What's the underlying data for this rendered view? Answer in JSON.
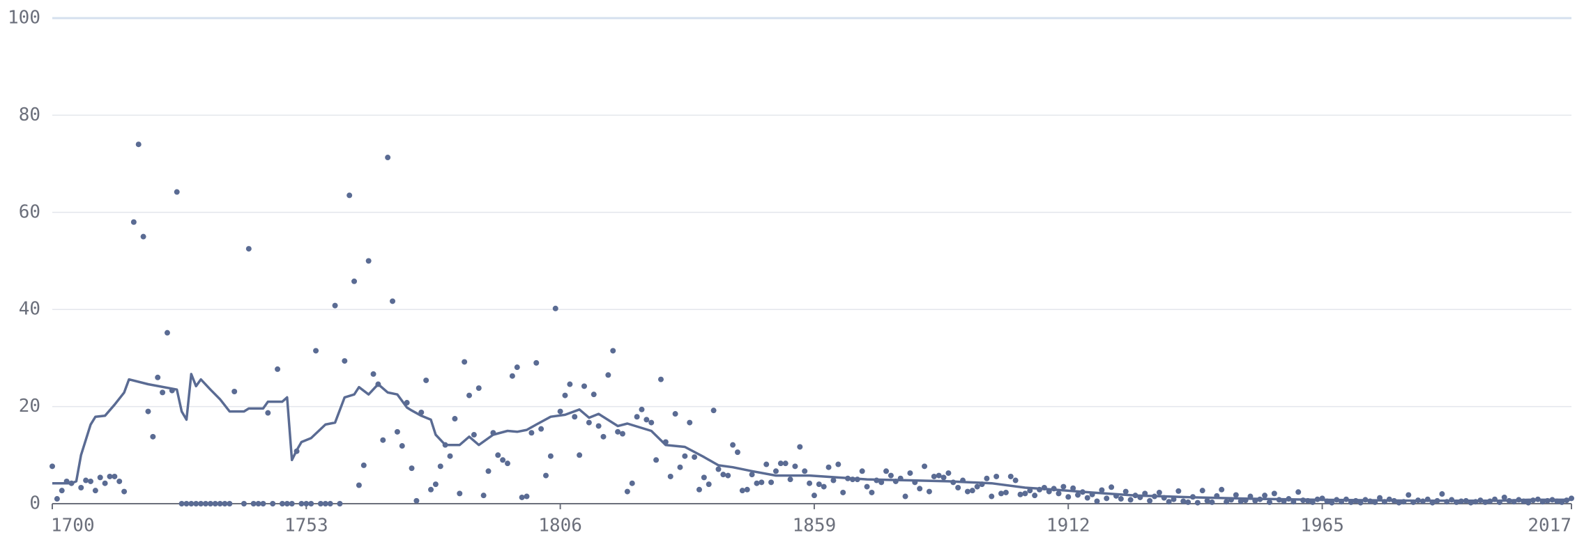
{
  "chart_data": {
    "type": "scatter",
    "x": [
      1700,
      1701,
      1702,
      1703,
      1704,
      1705,
      1706,
      1707,
      1708,
      1709,
      1710,
      1711,
      1712,
      1713,
      1714,
      1715,
      1716,
      1717,
      1718,
      1719,
      1720,
      1721,
      1722,
      1723,
      1724,
      1725,
      1726,
      1727,
      1728,
      1729,
      1730,
      1731,
      1732,
      1733,
      1734,
      1735,
      1736,
      1737,
      1738,
      1739,
      1740,
      1741,
      1742,
      1743,
      1744,
      1745,
      1746,
      1747,
      1748,
      1749,
      1750,
      1751,
      1752,
      1753,
      1754,
      1755,
      1756,
      1757,
      1758,
      1759,
      1760,
      1761,
      1762,
      1763,
      1764,
      1765,
      1766,
      1767,
      1768,
      1769,
      1770,
      1771,
      1772,
      1773,
      1774,
      1775,
      1776,
      1777,
      1778,
      1779,
      1780,
      1781,
      1782,
      1783,
      1784,
      1785,
      1786,
      1787,
      1788,
      1789,
      1790,
      1791,
      1792,
      1793,
      1794,
      1795,
      1796,
      1797,
      1798,
      1799,
      1800,
      1801,
      1802,
      1803,
      1804,
      1805,
      1806,
      1807,
      1808,
      1809,
      1810,
      1811,
      1812,
      1813,
      1814,
      1815,
      1816,
      1817,
      1818,
      1819,
      1820,
      1821,
      1822,
      1823,
      1824,
      1825,
      1826,
      1827,
      1828,
      1829,
      1830,
      1831,
      1832,
      1833,
      1834,
      1835,
      1836,
      1837,
      1838,
      1839,
      1840,
      1841,
      1842,
      1843,
      1844,
      1845,
      1846,
      1847,
      1848,
      1849,
      1850,
      1851,
      1852,
      1853,
      1854,
      1855,
      1856,
      1857,
      1858,
      1859,
      1860,
      1861,
      1862,
      1863,
      1864,
      1865,
      1866,
      1867,
      1868,
      1869,
      1870,
      1871,
      1872,
      1873,
      1874,
      1875,
      1876,
      1877,
      1878,
      1879,
      1880,
      1881,
      1882,
      1883,
      1884,
      1885,
      1886,
      1887,
      1888,
      1889,
      1890,
      1891,
      1892,
      1893,
      1894,
      1895,
      1896,
      1897,
      1898,
      1899,
      1900,
      1901,
      1902,
      1903,
      1904,
      1905,
      1906,
      1907,
      1908,
      1909,
      1910,
      1911,
      1912,
      1913,
      1914,
      1915,
      1916,
      1917,
      1918,
      1919,
      1920,
      1921,
      1922,
      1923,
      1924,
      1925,
      1926,
      1927,
      1928,
      1929,
      1930,
      1931,
      1932,
      1933,
      1934,
      1935,
      1936,
      1937,
      1938,
      1939,
      1940,
      1941,
      1942,
      1943,
      1944,
      1945,
      1946,
      1947,
      1948,
      1949,
      1950,
      1951,
      1952,
      1953,
      1954,
      1955,
      1956,
      1957,
      1958,
      1959,
      1960,
      1961,
      1962,
      1963,
      1964,
      1965,
      1966,
      1967,
      1968,
      1969,
      1970,
      1971,
      1972,
      1973,
      1974,
      1975,
      1976,
      1977,
      1978,
      1979,
      1980,
      1981,
      1982,
      1983,
      1984,
      1985,
      1986,
      1987,
      1988,
      1989,
      1990,
      1991,
      1992,
      1993,
      1994,
      1995,
      1996,
      1997,
      1998,
      1999,
      2000,
      2001,
      2002,
      2003,
      2004,
      2005,
      2006,
      2007,
      2008,
      2009,
      2010,
      2011,
      2012,
      2013,
      2014,
      2015,
      2016,
      2017
    ],
    "values": [
      7.7,
      1,
      2.7,
      4.6,
      4.2,
      null,
      3.3,
      4.8,
      4.6,
      2.7,
      5.4,
      4.2,
      5.6,
      5.6,
      4.6,
      2.5,
      null,
      58,
      74,
      55,
      19,
      13.8,
      26,
      22.9,
      35.2,
      23.3,
      64.2,
      0,
      0,
      0,
      0,
      0,
      0,
      0,
      0,
      0,
      0,
      0,
      23.1,
      null,
      0,
      52.5,
      0,
      0,
      0,
      18.7,
      0,
      27.7,
      0,
      0,
      0,
      10.8,
      0,
      0,
      0,
      31.5,
      0,
      0,
      0,
      40.8,
      0,
      29.4,
      63.5,
      45.8,
      3.8,
      7.9,
      50,
      26.7,
      24.6,
      13.1,
      71.3,
      41.7,
      14.8,
      11.9,
      20.8,
      7.3,
      0.6,
      18.8,
      25.4,
      2.9,
      4,
      7.7,
      12.1,
      9.8,
      17.5,
      2.1,
      29.2,
      22.3,
      14.2,
      23.8,
      1.7,
      6.7,
      14.6,
      10,
      9,
      8.3,
      26.3,
      28.1,
      1.3,
      1.5,
      14.6,
      29,
      15.4,
      5.8,
      9.8,
      40.2,
      19,
      22.3,
      24.6,
      17.9,
      10,
      24.2,
      16.7,
      22.5,
      16,
      13.8,
      26.5,
      31.5,
      14.8,
      14.4,
      2.5,
      4.2,
      17.9,
      19.4,
      17.3,
      16.7,
      9,
      25.6,
      12.7,
      5.6,
      18.5,
      7.5,
      9.8,
      16.7,
      9.6,
      2.9,
      5.4,
      4,
      19.2,
      7.1,
      6,
      5.8,
      12.1,
      10.6,
      2.7,
      2.9,
      6,
      4.2,
      4.4,
      8.1,
      4.4,
      6.7,
      8.3,
      8.3,
      5,
      7.7,
      11.7,
      6.7,
      4.2,
      1.7,
      4,
      3.5,
      7.5,
      4.8,
      8.1,
      2.3,
      5.2,
      5,
      5,
      6.7,
      3.5,
      2.3,
      4.8,
      4.4,
      6.7,
      5.8,
      4.6,
      5.2,
      1.5,
      6.3,
      4.4,
      3.1,
      7.7,
      2.5,
      5.6,
      5.8,
      5.4,
      6.3,
      4.4,
      3.3,
      4.8,
      2.5,
      2.7,
      3.5,
      4,
      5.2,
      1.5,
      5.6,
      2.1,
      2.3,
      5.6,
      4.8,
      1.9,
      2.1,
      2.7,
      1.7,
      2.9,
      3.3,
      2.5,
      3.1,
      2.1,
      3.5,
      1.4,
      3.2,
      1.8,
      2.4,
      1.2,
      1.9,
      0.5,
      2.8,
      1.1,
      3.4,
      1.6,
      1,
      2.5,
      0.8,
      1.7,
      1.3,
      2.1,
      0.6,
      1.5,
      2.3,
      1.2,
      0.4,
      0.9,
      2.6,
      0.5,
      0.3,
      1.4,
      0.2,
      2.7,
      0.6,
      0.3,
      1.6,
      2.9,
      0.4,
      0.8,
      1.8,
      0.5,
      0.7,
      1.5,
      0.6,
      0.9,
      1.7,
      0.3,
      2.1,
      0.8,
      0.5,
      1,
      0.4,
      2.4,
      0.7,
      0.6,
      0.3,
      0.9,
      1.1,
      0.5,
      0.2,
      0.8,
      0.4,
      0.9,
      0.3,
      0.6,
      0.2,
      0.8,
      0.5,
      0.3,
      1.2,
      0.4,
      0.9,
      0.6,
      0.2,
      0.4,
      1.8,
      0.3,
      0.7,
      0.5,
      0.9,
      0.2,
      0.6,
      2,
      0.4,
      0.8,
      0.3,
      0.5,
      0.6,
      0.2,
      0.4,
      0.7,
      0.3,
      0.5,
      0.9,
      0.3,
      1.3,
      0.6,
      0.4,
      0.8,
      0.5,
      0.2,
      0.7,
      0.9,
      0.4,
      0.6,
      0.8,
      0.5,
      0.3,
      0.7,
      1.1
    ],
    "color": "#5a6b93",
    "line": {
      "x": [
        1700,
        1704,
        1705,
        1706,
        1708,
        1709,
        1711,
        1713,
        1715,
        1716,
        1720,
        1726,
        1727,
        1728,
        1729,
        1730,
        1731,
        1733,
        1735,
        1737,
        1740,
        1741,
        1744,
        1745,
        1748,
        1749,
        1750,
        1751,
        1752,
        1754,
        1757,
        1759,
        1761,
        1763,
        1764,
        1766,
        1768,
        1770,
        1772,
        1774,
        1775,
        1777,
        1779,
        1780,
        1782,
        1785,
        1787,
        1789,
        1792,
        1795,
        1797,
        1799,
        1801,
        1804,
        1807,
        1810,
        1812,
        1814,
        1818,
        1820,
        1825,
        1828,
        1832,
        1836,
        1839,
        1842,
        1846,
        1851,
        1858,
        1864,
        1870,
        1879,
        1887,
        1896,
        1903,
        1909,
        1917,
        1926,
        1938,
        1951,
        1964,
        1985,
        2002,
        2008,
        2017
      ],
      "values": [
        4.2,
        4.2,
        4.6,
        10,
        16.3,
        17.9,
        18.1,
        20.4,
        22.9,
        25.6,
        24.6,
        23.5,
        19,
        17.3,
        26.7,
        24.2,
        25.6,
        23.5,
        21.5,
        19,
        19,
        19.6,
        19.6,
        21,
        21,
        21.9,
        9,
        11,
        12.7,
        13.5,
        16.3,
        16.7,
        21.9,
        22.5,
        24,
        22.5,
        24.6,
        22.9,
        22.5,
        19.8,
        19.2,
        18.1,
        17.3,
        14.2,
        12.1,
        12.1,
        13.8,
        12.1,
        14.2,
        15,
        14.8,
        15.2,
        16.3,
        17.9,
        18.3,
        19.4,
        17.7,
        18.5,
        16,
        16.5,
        15,
        12.1,
        11.7,
        9.6,
        7.9,
        7.5,
        6.7,
        5.8,
        5.8,
        5.4,
        5,
        4.8,
        4.6,
        4.2,
        3.3,
        2.9,
        2.3,
        1.7,
        1.3,
        1,
        0.8,
        0.6,
        0.6,
        0.8,
        0.8
      ],
      "color": "#5a6b93"
    },
    "xlim": [
      1700,
      2017
    ],
    "xticks": [
      1700,
      1753,
      1806,
      1859,
      1912,
      1965,
      2017
    ],
    "ylim": [
      0,
      100
    ],
    "yticks": [
      0,
      20,
      40,
      60,
      80,
      100
    ],
    "grid": true
  }
}
